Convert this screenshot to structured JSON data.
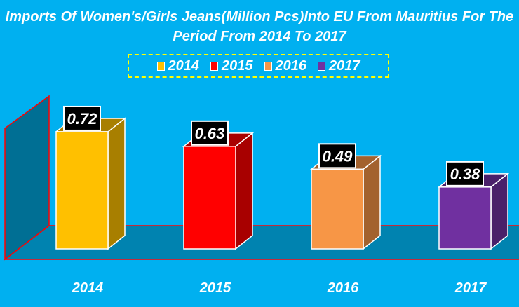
{
  "chart_data": {
    "type": "bar",
    "title_line1": "Imports Of Women's/Girls Jeans(Million Pcs)Into EU From Mauritius For The",
    "title_line2": "Period From 2014 To 2017",
    "categories": [
      "2014",
      "2015",
      "2016",
      "2017"
    ],
    "values": [
      0.72,
      0.63,
      0.49,
      0.38
    ],
    "data_labels": [
      "0.72",
      "0.63",
      "0.49",
      "0.38"
    ],
    "colors": [
      "#ffc000",
      "#ff0000",
      "#f79646",
      "#7030a0"
    ],
    "side_colors": [
      "#a87f00",
      "#a80000",
      "#a3622e",
      "#4a206a"
    ],
    "legend": [
      "2014",
      "2015",
      "2016",
      "2017"
    ],
    "legend_placement": "top-center",
    "ylim": [
      0,
      0.8
    ],
    "xlabel": "",
    "ylabel": "",
    "grid": false
  }
}
